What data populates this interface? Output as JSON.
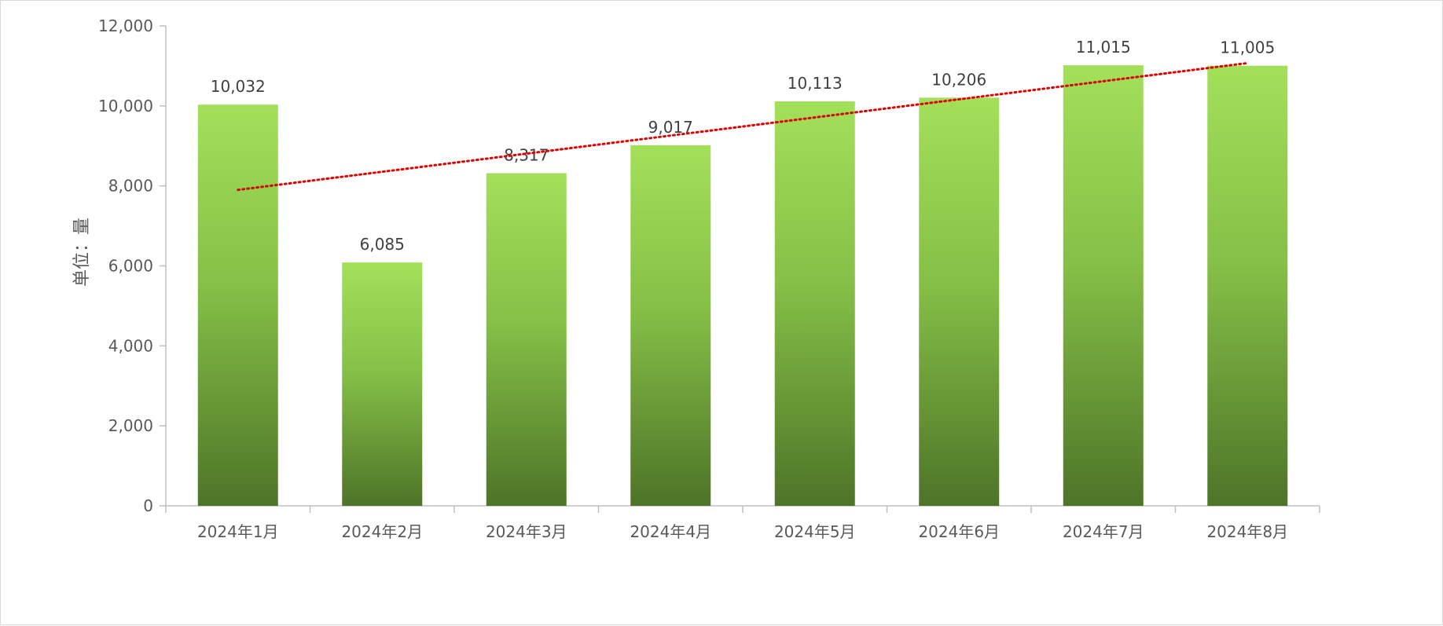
{
  "chart_data": {
    "type": "bar",
    "title": "",
    "xlabel": "",
    "ylabel": "单位：量",
    "categories": [
      "2024年1月",
      "2024年2月",
      "2024年3月",
      "2024年4月",
      "2024年5月",
      "2024年6月",
      "2024年7月",
      "2024年8月"
    ],
    "values": [
      10032,
      6085,
      8317,
      9017,
      10113,
      10206,
      11015,
      11005
    ],
    "data_labels": [
      "10,032",
      "6,085",
      "8,317",
      "9,017",
      "10,113",
      "10,206",
      "11,015",
      "11,005"
    ],
    "ylim": [
      0,
      12000
    ],
    "yticks": [
      0,
      2000,
      4000,
      6000,
      8000,
      10000,
      12000
    ],
    "ytick_labels": [
      "0",
      "2,000",
      "4,000",
      "6,000",
      "8,000",
      "10,000",
      "12,000"
    ],
    "grid": false,
    "legend": "none",
    "trendline": {
      "type": "linear",
      "style": "dotted",
      "color": "#e00000",
      "start_value": 7900,
      "end_value": 11070
    },
    "colors": {
      "bar_top": "#a3e05a",
      "bar_mid": "#85c047",
      "bar_bottom": "#4e7428",
      "axis": "#bfbfbf",
      "text": "#595959"
    }
  }
}
